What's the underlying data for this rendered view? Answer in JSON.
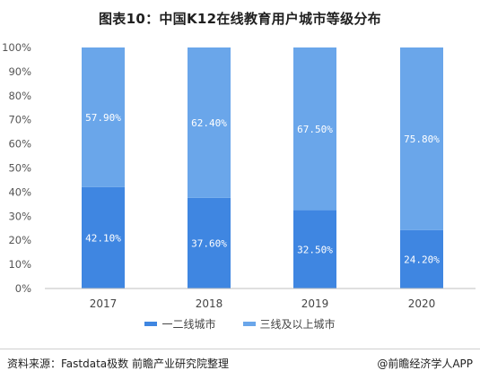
{
  "title": "图表10：中国K12在线教育用户城市等级分布",
  "source_text": "资料来源：Fastdata极数 前瞻产业研究院整理",
  "credit_text": "@前瞻经济学人APP",
  "colors": {
    "series1": "#3f86e1",
    "series2": "#6aa6ea"
  },
  "chart_data": {
    "type": "bar",
    "stacked": true,
    "categories": [
      "2017",
      "2018",
      "2019",
      "2020"
    ],
    "series": [
      {
        "name": "一二线城市",
        "values": [
          42.1,
          37.6,
          32.5,
          24.2
        ],
        "labels": [
          "42.10%",
          "37.60%",
          "32.50%",
          "24.20%"
        ]
      },
      {
        "name": "三线及以上城市",
        "values": [
          57.9,
          62.4,
          67.5,
          75.8
        ],
        "labels": [
          "57.90%",
          "62.40%",
          "67.50%",
          "75.80%"
        ]
      }
    ],
    "yticks": [
      "0%",
      "10%",
      "20%",
      "30%",
      "40%",
      "50%",
      "60%",
      "70%",
      "80%",
      "90%",
      "100%"
    ],
    "ylim": [
      0,
      100
    ],
    "grid": false,
    "legend": "bottom"
  }
}
